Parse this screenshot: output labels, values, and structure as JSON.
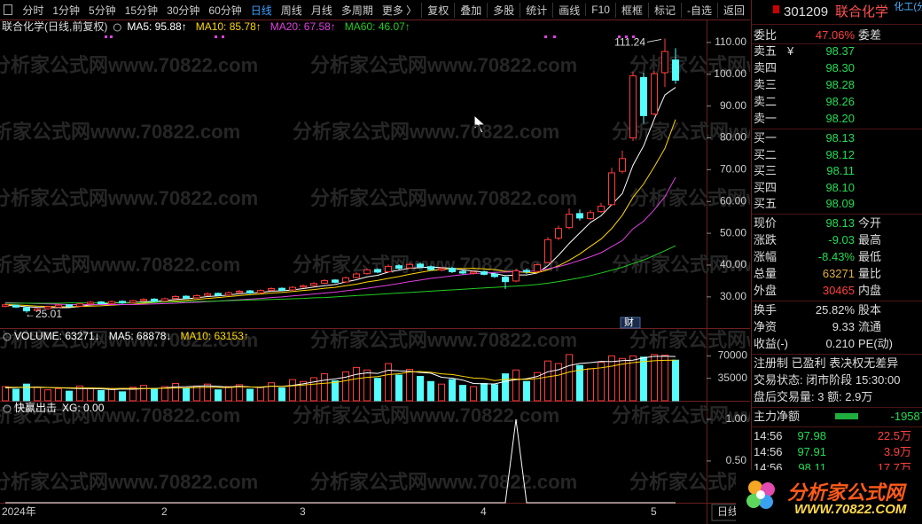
{
  "toolbar": {
    "periods": [
      "分时",
      "1分钟",
      "5分钟",
      "15分钟",
      "30分钟",
      "60分钟",
      "日线",
      "周线",
      "月线",
      "多周期",
      "更多 〉"
    ],
    "active": "日线",
    "tools": [
      "复权",
      "叠加",
      "多股",
      "统计",
      "画线",
      "F10",
      "框框",
      "标记",
      "-自选",
      "返回"
    ]
  },
  "watermark": "分析家公式网www.70822.com",
  "chart_data": [
    {
      "type": "candlestick",
      "title": "联合化学(日线,前复权)",
      "categories": [
        "2024年",
        null,
        null,
        null,
        null,
        null,
        null,
        null,
        null,
        null,
        null,
        null,
        null,
        null,
        null,
        "2",
        null,
        null,
        null,
        null,
        null,
        null,
        null,
        null,
        null,
        null,
        null,
        null,
        "3",
        null,
        null,
        null,
        null,
        null,
        null,
        null,
        null,
        null,
        null,
        null,
        null,
        null,
        null,
        null,
        null,
        "4",
        null,
        null,
        null,
        null,
        null,
        null,
        null,
        null,
        null,
        null,
        null,
        null,
        null,
        null,
        null,
        "5",
        null,
        null
      ],
      "open": [
        27.0,
        27.4,
        26.6,
        25.7,
        26.3,
        26.8,
        27.5,
        27.1,
        27.8,
        28.4,
        27.9,
        28.6,
        28.2,
        28.8,
        29.3,
        28.7,
        29.5,
        30.2,
        29.7,
        30.5,
        31.1,
        30.6,
        31.4,
        31.9,
        31.3,
        32.1,
        32.7,
        32.2,
        33.1,
        33.6,
        34.3,
        35.3,
        34.7,
        36.1,
        37.3,
        38.6,
        37.9,
        39.8,
        39.1,
        40.3,
        39.5,
        38.5,
        39.0,
        38.0,
        37.4,
        37.9,
        37.2,
        36.2,
        35.0,
        38.3,
        38.0,
        40.8,
        48.5,
        51.8,
        56.2,
        54.6,
        56.8,
        59.0,
        69.5,
        80.0,
        99.0,
        87.5,
        100.5,
        104.5
      ],
      "high": [
        28.0,
        27.6,
        26.9,
        26.6,
        27.2,
        27.8,
        27.7,
        28.2,
        28.7,
        28.7,
        28.9,
        28.9,
        29.1,
        29.6,
        29.6,
        29.8,
        30.5,
        30.5,
        30.8,
        31.4,
        31.4,
        31.7,
        32.2,
        32.2,
        32.4,
        33.0,
        33.0,
        33.4,
        33.9,
        34.6,
        35.6,
        35.6,
        36.4,
        37.7,
        39.0,
        39.0,
        40.2,
        40.3,
        40.8,
        40.9,
        39.9,
        39.4,
        39.4,
        38.4,
        38.3,
        38.3,
        37.6,
        36.5,
        38.8,
        38.9,
        40.7,
        48.8,
        52.4,
        57.8,
        57.5,
        57.3,
        59.6,
        70.6,
        76.0,
        100.8,
        100.5,
        101.0,
        111.24,
        108.2
      ],
      "low": [
        26.7,
        26.5,
        25.01,
        25.4,
        26.0,
        26.5,
        26.8,
        26.9,
        27.6,
        27.6,
        27.6,
        27.8,
        28.0,
        28.5,
        28.3,
        28.4,
        29.2,
        29.3,
        29.4,
        30.2,
        30.2,
        30.3,
        31.0,
        30.9,
        31.0,
        31.8,
        31.8,
        31.9,
        32.8,
        33.2,
        34.0,
        34.3,
        34.4,
        35.8,
        37.0,
        37.4,
        37.6,
        38.6,
        38.8,
        39.1,
        38.2,
        38.0,
        37.5,
        37.1,
        37.0,
        36.8,
        36.0,
        32.5,
        34.6,
        37.2,
        37.6,
        40.5,
        47.8,
        51.2,
        54.0,
        54.2,
        56.4,
        58.6,
        68.8,
        79.0,
        84.5,
        87.0,
        96.0,
        97.0
      ],
      "close": [
        27.5,
        26.8,
        25.6,
        26.2,
        26.9,
        27.4,
        27.0,
        27.8,
        28.3,
        27.9,
        28.5,
        28.1,
        28.8,
        29.2,
        28.6,
        29.4,
        30.1,
        29.6,
        30.4,
        31.0,
        30.5,
        31.3,
        31.8,
        31.2,
        32.0,
        32.6,
        32.1,
        33.0,
        33.5,
        34.2,
        35.1,
        34.6,
        36.0,
        37.2,
        38.5,
        37.8,
        39.6,
        39.0,
        40.2,
        39.4,
        38.6,
        38.9,
        37.9,
        37.5,
        37.8,
        37.1,
        36.4,
        34.8,
        38.2,
        37.9,
        40.1,
        48.0,
        51.5,
        56.0,
        54.8,
        56.5,
        58.5,
        69.0,
        73.5,
        99.5,
        87.0,
        100.2,
        107.16,
        98.13
      ],
      "up_color": "#ff3c3c",
      "down_color": "#54fcfc",
      "series": [
        {
          "name": "MA5",
          "label": "MA5: 95.88↑",
          "color": "#ffffff",
          "values": [
            27.3,
            27.2,
            26.9,
            26.7,
            26.6,
            26.6,
            26.6,
            27.0,
            27.5,
            27.7,
            28.1,
            28.1,
            28.3,
            28.5,
            28.6,
            28.8,
            29.2,
            29.4,
            29.7,
            30.1,
            30.3,
            30.6,
            31.0,
            31.2,
            31.4,
            31.8,
            31.9,
            32.2,
            32.6,
            33.1,
            33.5,
            33.9,
            34.7,
            35.4,
            36.3,
            36.8,
            37.8,
            38.4,
            39.0,
            39.2,
            39.4,
            39.2,
            39.0,
            38.5,
            38.1,
            37.8,
            37.3,
            36.7,
            36.9,
            36.9,
            37.5,
            39.8,
            43.1,
            46.8,
            50.1,
            53.4,
            55.5,
            59.0,
            62.5,
            71.4,
            77.5,
            85.9,
            93.5,
            95.88
          ]
        },
        {
          "name": "MA10",
          "label": "MA10: 85.78↑",
          "color": "#ffd700",
          "values": [
            27.6,
            27.5,
            27.3,
            27.1,
            27.0,
            26.9,
            26.9,
            27.0,
            27.1,
            27.2,
            27.4,
            27.6,
            27.7,
            28.0,
            28.2,
            28.4,
            28.7,
            28.9,
            29.2,
            29.5,
            29.8,
            30.1,
            30.4,
            30.7,
            30.9,
            31.2,
            31.4,
            31.7,
            32.0,
            32.3,
            32.7,
            33.0,
            33.5,
            34.0,
            34.7,
            35.2,
            35.8,
            36.4,
            37.1,
            37.7,
            38.3,
            38.6,
            38.9,
            38.9,
            39.0,
            38.8,
            38.6,
            38.0,
            37.9,
            37.7,
            37.6,
            38.5,
            39.8,
            41.5,
            43.5,
            45.9,
            48.2,
            51.5,
            55.7,
            61.3,
            65.5,
            70.9,
            76.7,
            85.78
          ]
        },
        {
          "name": "MA20",
          "label": "MA20: 67.58↑",
          "color": "#e040e0",
          "values": [
            28.2,
            28.1,
            28.0,
            27.9,
            27.8,
            27.7,
            27.6,
            27.6,
            27.6,
            27.6,
            27.6,
            27.6,
            27.6,
            27.7,
            27.8,
            27.9,
            28.0,
            28.2,
            28.3,
            28.5,
            28.7,
            28.9,
            29.1,
            29.3,
            29.5,
            29.8,
            30.0,
            30.3,
            30.6,
            30.9,
            31.2,
            31.5,
            31.9,
            32.3,
            32.7,
            33.2,
            33.7,
            34.2,
            34.8,
            35.3,
            35.8,
            36.2,
            36.6,
            37.0,
            37.3,
            37.5,
            37.7,
            37.8,
            37.9,
            38.0,
            38.2,
            38.8,
            39.5,
            40.4,
            41.5,
            42.6,
            43.9,
            45.8,
            47.7,
            51.4,
            53.8,
            57.4,
            61.5,
            67.58
          ]
        },
        {
          "name": "MA60",
          "label": "MA60: 46.07↑",
          "color": "#22cc22",
          "values": [
            28.0,
            28.0,
            28.0,
            28.0,
            28.0,
            28.0,
            28.1,
            28.1,
            28.1,
            28.1,
            28.2,
            28.2,
            28.2,
            28.3,
            28.3,
            28.4,
            28.4,
            28.5,
            28.6,
            28.6,
            28.7,
            28.8,
            28.9,
            29.0,
            29.1,
            29.2,
            29.3,
            29.4,
            29.5,
            29.7,
            29.8,
            30.0,
            30.2,
            30.4,
            30.6,
            30.8,
            31.0,
            31.2,
            31.4,
            31.6,
            31.8,
            32.0,
            32.2,
            32.4,
            32.6,
            32.8,
            33.0,
            33.2,
            33.4,
            33.6,
            33.9,
            34.3,
            34.8,
            35.4,
            36.0,
            36.7,
            37.5,
            38.4,
            39.3,
            40.5,
            41.6,
            43.0,
            44.5,
            46.07
          ]
        }
      ],
      "ylim": [
        20.2,
        112.2
      ],
      "yticks": [
        {
          "value": 30,
          "label": "30.00"
        },
        {
          "value": 40,
          "label": "40.00"
        },
        {
          "value": 50,
          "label": "50.00"
        },
        {
          "value": 60,
          "label": "60.00"
        },
        {
          "value": 70,
          "label": "70.00"
        },
        {
          "value": 80,
          "label": "80.00"
        },
        {
          "value": 90,
          "label": "90.00"
        },
        {
          "value": 100,
          "label": "100.00"
        },
        {
          "value": 110,
          "label": "110.00"
        }
      ],
      "high_label": "111.24",
      "low_label": "←25.01",
      "badge": "财",
      "grid": false
    },
    {
      "type": "volume",
      "label": "VOLUME: 63271↓",
      "values": [
        22000,
        18000,
        26000,
        21000,
        17000,
        19000,
        15000,
        23000,
        20000,
        16000,
        19000,
        14000,
        21000,
        24000,
        18000,
        22000,
        27000,
        19000,
        23000,
        26000,
        17000,
        22000,
        25000,
        18000,
        21000,
        28000,
        20000,
        33000,
        30000,
        36000,
        42000,
        31000,
        45000,
        52000,
        48000,
        35000,
        58000,
        40000,
        49000,
        38000,
        30000,
        26000,
        33000,
        24000,
        22000,
        27000,
        25000,
        42000,
        48000,
        30000,
        44000,
        62000,
        58000,
        72000,
        55000,
        50000,
        60000,
        70000,
        66000,
        70000,
        68000,
        72000,
        71000,
        63271
      ],
      "series": [
        {
          "name": "MA5",
          "label": "MA5: 68878↓",
          "color": "#ffffff",
          "values": [
            20000,
            20500,
            21000,
            21500,
            20800,
            20200,
            19600,
            19000,
            18800,
            18600,
            17400,
            18400,
            18000,
            18800,
            19200,
            19800,
            21800,
            22000,
            22600,
            23400,
            22400,
            21400,
            22600,
            21600,
            20600,
            22800,
            22400,
            24000,
            26400,
            29400,
            32200,
            34000,
            36800,
            41200,
            43600,
            42600,
            47600,
            46600,
            46000,
            44000,
            43000,
            36600,
            35200,
            32200,
            27000,
            26400,
            26200,
            30200,
            32800,
            34400,
            37800,
            45200,
            48400,
            54800,
            58200,
            59400,
            61400,
            61000,
            62600,
            63200,
            66800,
            69200,
            69400,
            68878
          ]
        },
        {
          "name": "MA10",
          "label": "MA10: 63153↑",
          "color": "#ffd700",
          "values": [
            21000,
            21000,
            20900,
            20800,
            20600,
            20400,
            20200,
            20000,
            19800,
            19700,
            19000,
            19400,
            19100,
            19200,
            19000,
            19500,
            19800,
            20000,
            20600,
            21000,
            20700,
            20500,
            21800,
            21500,
            21400,
            22800,
            22100,
            23400,
            24600,
            26000,
            27300,
            28400,
            31300,
            34400,
            36500,
            37700,
            40800,
            42100,
            44700,
            45600,
            44400,
            42000,
            40900,
            38100,
            35500,
            34700,
            31400,
            33300,
            33900,
            33100,
            34500,
            37400,
            39900,
            44700,
            47800,
            49800,
            51400,
            53900,
            57200,
            59400,
            61200,
            62400,
            63000,
            63153
          ]
        }
      ],
      "ylim": [
        0,
        109200
      ],
      "yticks": [
        35000,
        70000
      ]
    },
    {
      "type": "line",
      "title": "快赢出击",
      "series": [
        {
          "name": "XG",
          "label": "XG: 0.00",
          "color": "#ffffff",
          "values": [
            0,
            0,
            0,
            0,
            0,
            0,
            0,
            0,
            0,
            0,
            0,
            0,
            0,
            0,
            0,
            0,
            0,
            0,
            0,
            0,
            0,
            0,
            0,
            0,
            0,
            0,
            0,
            0,
            0,
            0,
            0,
            0,
            0,
            0,
            0,
            0,
            0,
            0,
            0,
            0,
            0,
            0,
            0,
            0,
            0,
            0,
            0,
            0,
            1,
            0,
            0,
            0,
            0,
            0,
            0,
            0,
            0,
            0,
            0,
            0,
            0,
            0,
            0,
            0
          ]
        }
      ],
      "ylim": [
        0,
        1.19
      ],
      "yticks": [
        {
          "value": 0.5,
          "label": "0.50"
        },
        {
          "value": 1,
          "label": "1.00"
        }
      ],
      "period": "日线"
    }
  ],
  "quote": {
    "code": "301209",
    "name": "联合化学",
    "industry": "化工(分",
    "ratio": [
      "委比",
      "47.06%",
      "委差"
    ],
    "currency": "¥",
    "asks": [
      [
        "卖五",
        "98.37"
      ],
      [
        "卖四",
        "98.30"
      ],
      [
        "卖三",
        "98.28"
      ],
      [
        "卖二",
        "98.26"
      ],
      [
        "卖一",
        "98.20"
      ]
    ],
    "bids": [
      [
        "买一",
        "98.13"
      ],
      [
        "买二",
        "98.12"
      ],
      [
        "买三",
        "98.11"
      ],
      [
        "买四",
        "98.10"
      ],
      [
        "买五",
        "98.09"
      ]
    ],
    "rows": [
      {
        "cells": [
          "现价",
          "98.13",
          "今开"
        ],
        "color": "#22dd55"
      },
      {
        "cells": [
          "涨跌",
          "-9.03",
          "最高"
        ],
        "color": "#22dd55"
      },
      {
        "cells": [
          "涨幅",
          "-8.43%",
          "最低"
        ],
        "color": "#22dd55"
      },
      {
        "cells": [
          "总量",
          "63271",
          "量比"
        ],
        "color": "#e0b040"
      },
      {
        "cells": [
          "外盘",
          "30465",
          "内盘"
        ],
        "color": "#ff4040"
      },
      {
        "cells": [
          "换手",
          "25.82%",
          "股本"
        ],
        "color": "#dddddd"
      },
      {
        "cells": [
          "净资",
          "9.33",
          "流通"
        ],
        "color": "#dddddd"
      },
      {
        "cells": [
          "收益(-)",
          "0.210",
          "PE(动)"
        ],
        "color": "#dddddd"
      }
    ],
    "info": [
      "注册制 已盈利 表决权无差异",
      "交易状态: 闭市阶段 15:30:00",
      "盘后交易量: 3  额: 2.9万"
    ],
    "flow": [
      "主力净额",
      "-19587"
    ],
    "trades": [
      {
        "cells": [
          "14:56",
          "97.98",
          "22.5万"
        ],
        "color": "#ff4040"
      },
      {
        "cells": [
          "14:56",
          "97.91",
          "3.9万"
        ],
        "color": "#ff4040"
      },
      {
        "cells": [
          "14:56",
          "98.11",
          "17.7万"
        ],
        "color": "#ff4040"
      }
    ]
  },
  "logo": {
    "title": "分析家公式网",
    "url": "WWW.70822.COM"
  }
}
